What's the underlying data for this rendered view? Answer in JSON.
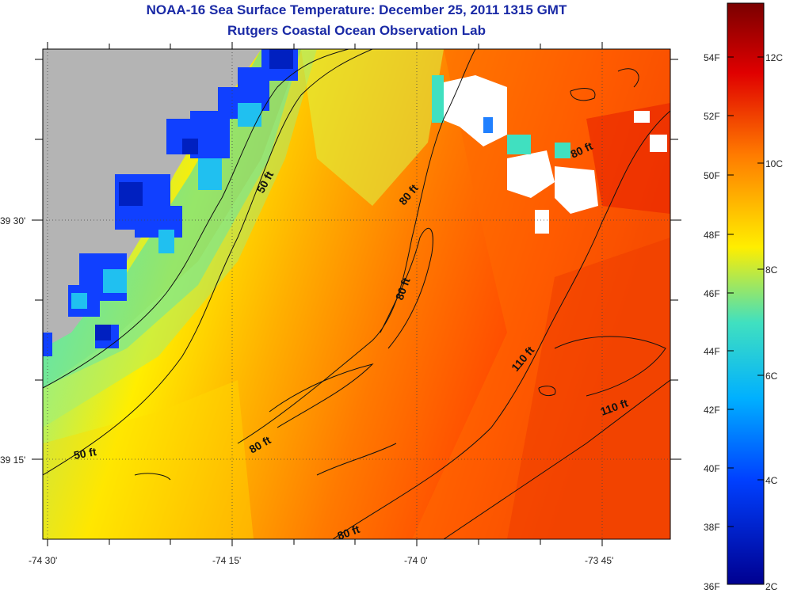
{
  "title": "NOAA-16 Sea Surface Temperature:  December 25, 2011 1315 GMT",
  "subtitle": "Rutgers Coastal Ocean Observation Lab",
  "x_ticks": [
    "-74 30'",
    "-74 15'",
    "-74 0'",
    "-73 45'"
  ],
  "y_ticks": [
    "39 30'",
    "39 15'"
  ],
  "contour_labels": [
    {
      "text": "50 ft"
    },
    {
      "text": "50 ft"
    },
    {
      "text": "80 ft"
    },
    {
      "text": "80 ft"
    },
    {
      "text": "80 ft"
    },
    {
      "text": "80 ft"
    },
    {
      "text": "80 ft"
    },
    {
      "text": "110 ft"
    },
    {
      "text": "110 ft"
    }
  ],
  "colorbar": {
    "fahrenheit_labels": [
      "54F",
      "52F",
      "50F",
      "48F",
      "46F",
      "44F",
      "42F",
      "40F",
      "38F",
      "36F"
    ],
    "celsius_labels": [
      "12C",
      "10C",
      "8C",
      "6C",
      "4C",
      "2C"
    ],
    "colors": [
      "#7a0000",
      "#e00000",
      "#ff7a00",
      "#ffee00",
      "#40e0c0",
      "#00b0ff",
      "#0040ff",
      "#000090"
    ]
  },
  "colors": {
    "land": "#b4b4b4",
    "cloud": "#ffffff",
    "title": "#1a2aa6"
  }
}
